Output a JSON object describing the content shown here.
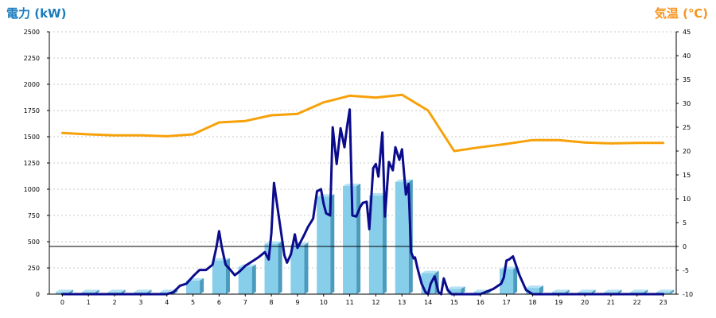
{
  "chart_data": {
    "type": "bar+line",
    "left_axis_label": "電力 (kW)",
    "right_axis_label": "気温 (℃)",
    "y_left": {
      "min": 0,
      "max": 2500,
      "ticks": [
        "0",
        "250",
        "500",
        "750",
        "1000",
        "1250",
        "1500",
        "1750",
        "2000",
        "2250",
        "2500"
      ]
    },
    "y_right": {
      "min": -10,
      "max": 45,
      "ticks": [
        "-10",
        "-5",
        "0",
        "5",
        "10",
        "15",
        "20",
        "25",
        "30",
        "35",
        "40",
        "45"
      ]
    },
    "x_ticks": [
      "0",
      "1",
      "2",
      "3",
      "4",
      "5",
      "6",
      "7",
      "8",
      "9",
      "10",
      "11",
      "12",
      "13",
      "14",
      "15",
      "16",
      "17",
      "18",
      "19",
      "20",
      "21",
      "22",
      "23"
    ],
    "grid": "horizontal dashed",
    "series": [
      {
        "kind": "bar",
        "axis": "left",
        "color": "#87ceeb",
        "values": [
          20,
          20,
          20,
          20,
          20,
          130,
          320,
          260,
          480,
          470,
          930,
          1030,
          940,
          1070,
          200,
          50,
          20,
          240,
          60,
          20,
          20,
          20,
          20,
          20
        ]
      },
      {
        "kind": "line",
        "axis": "right",
        "color": "#f7a10a",
        "values": [
          23.8,
          23.5,
          23.3,
          23.3,
          23.1,
          23.5,
          26.0,
          26.3,
          27.5,
          27.8,
          30.2,
          31.6,
          31.2,
          31.8,
          28.5,
          20.0,
          20.8,
          21.5,
          22.3,
          22.3,
          21.8,
          21.6,
          21.7,
          21.7
        ]
      },
      {
        "kind": "line",
        "axis": "left",
        "color": "#0b0b8c",
        "x": [
          0,
          1,
          2,
          3,
          4,
          4.25,
          4.5,
          4.75,
          5,
          5.25,
          5.5,
          5.75,
          5.9,
          6,
          6.1,
          6.25,
          6.4,
          6.6,
          6.8,
          7,
          7.25,
          7.5,
          7.75,
          7.9,
          8,
          8.1,
          8.25,
          8.5,
          8.6,
          8.75,
          8.9,
          9,
          9.25,
          9.4,
          9.6,
          9.75,
          9.9,
          10,
          10.1,
          10.25,
          10.35,
          10.5,
          10.65,
          10.8,
          10.9,
          11,
          11.1,
          11.25,
          11.4,
          11.5,
          11.65,
          11.75,
          11.9,
          12,
          12.1,
          12.25,
          12.35,
          12.5,
          12.65,
          12.75,
          12.9,
          13,
          13.15,
          13.25,
          13.35,
          13.45,
          13.5,
          13.6,
          13.75,
          13.9,
          14,
          14.1,
          14.25,
          14.4,
          14.5,
          14.6,
          14.75,
          14.9,
          15,
          16,
          16.5,
          16.8,
          16.9,
          17,
          17.1,
          17.25,
          17.5,
          17.75,
          18,
          18.25,
          19,
          20,
          21,
          22,
          23
        ],
        "values": [
          0,
          0,
          0,
          0,
          0,
          20,
          80,
          100,
          170,
          230,
          230,
          280,
          450,
          600,
          450,
          280,
          240,
          180,
          220,
          270,
          310,
          350,
          400,
          330,
          580,
          1060,
          800,
          370,
          300,
          380,
          570,
          440,
          560,
          640,
          720,
          980,
          1000,
          860,
          770,
          750,
          1590,
          1240,
          1580,
          1400,
          1600,
          1760,
          750,
          740,
          830,
          870,
          880,
          620,
          1200,
          1240,
          1120,
          1540,
          740,
          1260,
          1180,
          1400,
          1280,
          1380,
          950,
          1050,
          400,
          340,
          350,
          240,
          100,
          20,
          0,
          100,
          170,
          20,
          0,
          150,
          40,
          0,
          0,
          0,
          50,
          100,
          160,
          320,
          330,
          360,
          180,
          40,
          0,
          0,
          0,
          0,
          0,
          0,
          0
        ]
      }
    ]
  }
}
